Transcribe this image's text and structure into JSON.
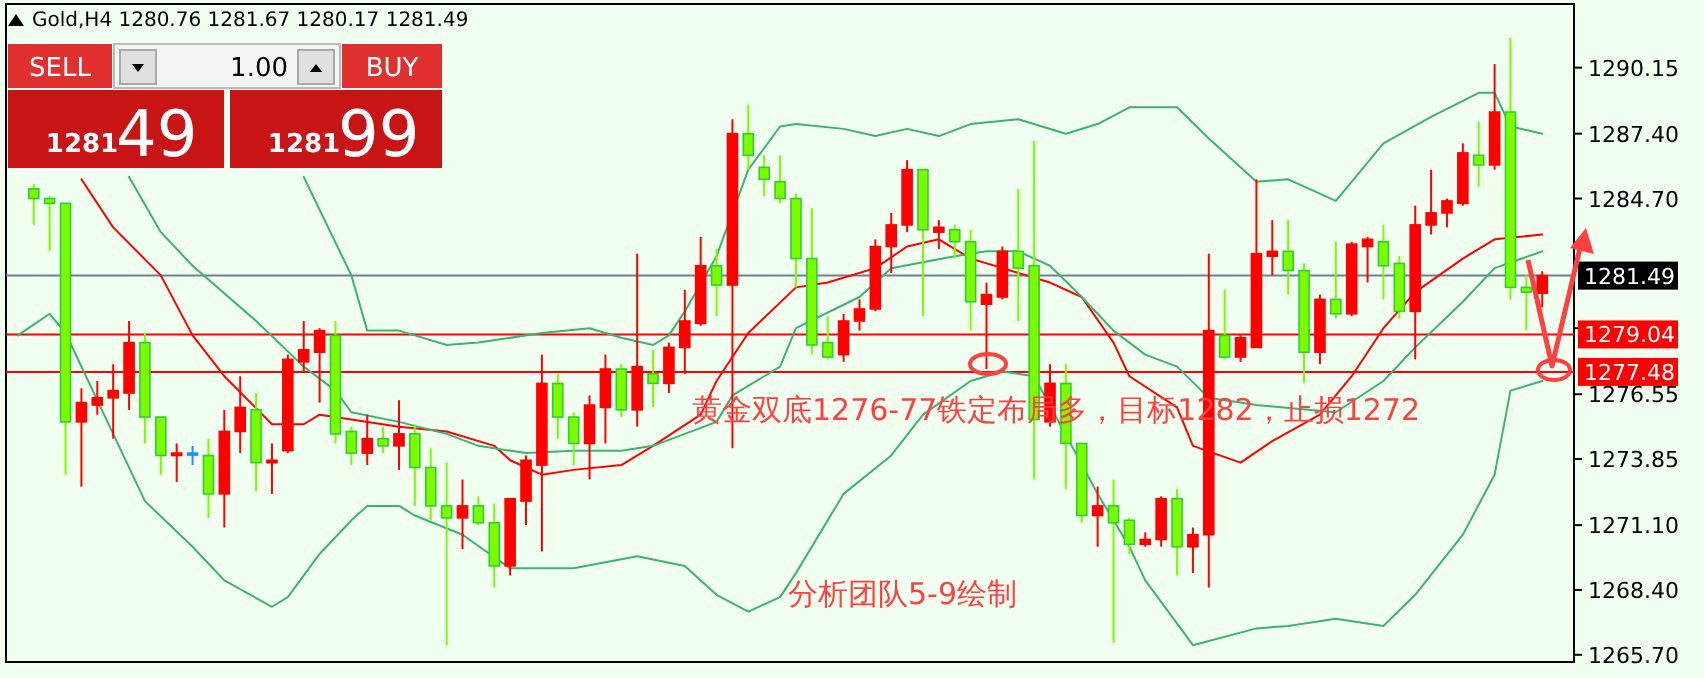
{
  "chart_data": {
    "type": "candlestick",
    "title": "Gold,H4 1280.76 1281.67 1280.17 1281.49",
    "categories": [
      null,
      null,
      null,
      null,
      null,
      null,
      null,
      null,
      null,
      null,
      null,
      null,
      null,
      null,
      null,
      null,
      null,
      null,
      null,
      null,
      null,
      null,
      null,
      null,
      null,
      null,
      null,
      null,
      null,
      null,
      null,
      null,
      null,
      null,
      null,
      null,
      null,
      null,
      null,
      null,
      null,
      null,
      null,
      null,
      null,
      null,
      null,
      null,
      null,
      null,
      null,
      null,
      null,
      null,
      null,
      null,
      null,
      null,
      null,
      null,
      null,
      null,
      null,
      null,
      null,
      null,
      null,
      null,
      null,
      null,
      null,
      null,
      null,
      null,
      null,
      null,
      null,
      null,
      null,
      null,
      null,
      null,
      null,
      null,
      null,
      null,
      null,
      null,
      null,
      null,
      null,
      null,
      null,
      null,
      null,
      null,
      null
    ],
    "ohlc": [
      null,
      [
        1285.1,
        1285.3,
        1283.6,
        1284.7
      ],
      [
        1284.7,
        1284.8,
        1282.5,
        1284.5
      ],
      [
        1284.5,
        1284.5,
        1273.2,
        1275.4
      ],
      [
        1275.4,
        1276.8,
        1272.7,
        1276.2
      ],
      [
        1276.1,
        1277.1,
        1275.7,
        1276.4
      ],
      [
        1276.4,
        1277.8,
        1274.7,
        1276.7
      ],
      [
        1276.6,
        1279.6,
        1275.9,
        1278.7
      ],
      [
        1278.7,
        1279.1,
        1274.5,
        1275.6
      ],
      [
        1275.6,
        1275.6,
        1273.2,
        1274.0
      ],
      [
        1274.0,
        1274.5,
        1272.9,
        1274.1
      ],
      [
        1274.1,
        1274.4,
        1273.6,
        1274.1
      ],
      [
        1274.0,
        1274.7,
        1271.4,
        1272.4
      ],
      [
        1272.4,
        1275.9,
        1271.0,
        1275.0
      ],
      [
        1275.0,
        1277.3,
        1274.1,
        1276.0
      ],
      [
        1275.9,
        1276.6,
        1272.5,
        1273.7
      ],
      [
        1273.7,
        1274.5,
        1272.4,
        1273.8
      ],
      [
        1274.2,
        1278.2,
        1274.1,
        1278.0
      ],
      [
        1277.9,
        1279.6,
        1277.5,
        1278.4
      ],
      [
        1278.3,
        1279.3,
        1276.2,
        1279.2
      ],
      [
        1279.0,
        1279.6,
        1274.5,
        1274.9
      ],
      [
        1275.0,
        1275.2,
        1273.6,
        1274.1
      ],
      [
        1274.1,
        1275.7,
        1273.6,
        1274.7
      ],
      [
        1274.7,
        1275.2,
        1274.1,
        1274.4
      ],
      [
        1274.4,
        1276.3,
        1273.4,
        1274.9
      ],
      [
        1274.9,
        1275.3,
        1271.9,
        1273.5
      ],
      [
        1273.5,
        1274.3,
        1271.3,
        1271.9
      ],
      [
        1271.9,
        1273.7,
        1266.1,
        1271.4
      ],
      [
        1271.4,
        1273.0,
        1270.1,
        1271.9
      ],
      [
        1271.9,
        1272.3,
        1271.1,
        1271.2
      ],
      [
        1271.2,
        1272.0,
        1268.5,
        1269.4
      ],
      [
        1269.4,
        1272.2,
        1269.0,
        1272.2
      ],
      [
        1272.1,
        1274.0,
        1271.1,
        1273.8
      ],
      [
        1273.6,
        1278.2,
        1270.0,
        1277.0
      ],
      [
        1277.0,
        1277.4,
        1274.7,
        1275.6
      ],
      [
        1275.6,
        1275.8,
        1273.6,
        1274.5
      ],
      [
        1274.5,
        1276.5,
        1273.0,
        1276.1
      ],
      [
        1276.0,
        1278.2,
        1274.5,
        1277.6
      ],
      [
        1277.6,
        1277.8,
        1275.6,
        1275.9
      ],
      [
        1275.9,
        1282.4,
        1275.2,
        1277.7
      ],
      [
        1277.4,
        1278.4,
        1276.0,
        1277.0
      ],
      [
        1277.0,
        1278.7,
        1276.6,
        1278.5
      ],
      [
        1278.5,
        1280.9,
        1277.4,
        1279.6
      ],
      [
        1279.5,
        1283.1,
        1279.4,
        1281.9
      ],
      [
        1281.9,
        1282.6,
        1279.8,
        1281.1
      ],
      [
        1281.1,
        1288.0,
        1274.3,
        1287.4
      ],
      [
        1287.4,
        1288.6,
        1285.9,
        1286.5
      ],
      [
        1286.0,
        1286.5,
        1284.8,
        1285.5
      ],
      [
        1285.4,
        1286.5,
        1284.5,
        1284.7
      ],
      [
        1284.7,
        1284.9,
        1281.0,
        1282.2
      ],
      [
        1282.2,
        1284.3,
        1278.2,
        1278.6
      ],
      [
        1278.7,
        1279.8,
        1278.0,
        1278.1
      ],
      [
        1278.2,
        1279.9,
        1277.9,
        1279.6
      ],
      [
        1279.6,
        1280.5,
        1279.2,
        1280.1
      ],
      [
        1280.1,
        1283.0,
        1280.0,
        1282.7
      ],
      [
        1282.7,
        1284.1,
        1281.6,
        1283.6
      ],
      [
        1283.6,
        1286.3,
        1283.3,
        1285.9
      ],
      [
        1285.9,
        1285.9,
        1279.8,
        1283.4
      ],
      [
        1283.3,
        1283.8,
        1282.6,
        1283.5
      ],
      [
        1283.4,
        1283.6,
        1282.2,
        1282.9
      ],
      [
        1282.9,
        1283.4,
        1279.2,
        1280.4
      ],
      [
        1280.3,
        1281.2,
        1277.6,
        1280.7
      ],
      [
        1280.6,
        1282.7,
        1280.5,
        1282.5
      ],
      [
        1282.5,
        1285.1,
        1279.6,
        1281.8
      ],
      [
        1281.9,
        1287.1,
        1273.0,
        1275.5
      ],
      [
        1275.4,
        1277.8,
        1275.2,
        1277.0
      ],
      [
        1277.0,
        1277.8,
        1272.6,
        1274.5
      ],
      [
        1274.5,
        1274.5,
        1271.2,
        1271.5
      ],
      [
        1271.5,
        1272.7,
        1270.2,
        1271.9
      ],
      [
        1271.9,
        1273.0,
        1266.2,
        1271.2
      ],
      [
        1271.3,
        1271.4,
        1269.9,
        1270.3
      ],
      [
        1270.3,
        1270.8,
        1270.2,
        1270.5
      ],
      [
        1270.5,
        1272.3,
        1270.2,
        1272.2
      ],
      [
        1272.2,
        1272.6,
        1269.0,
        1270.2
      ],
      [
        1270.2,
        1271.0,
        1269.1,
        1270.7
      ],
      [
        1270.7,
        1282.4,
        1268.5,
        1279.2
      ],
      [
        1279.0,
        1280.9,
        1278.0,
        1278.1
      ],
      [
        1278.1,
        1279.0,
        1277.9,
        1278.9
      ],
      [
        1278.5,
        1285.5,
        1278.5,
        1282.4
      ],
      [
        1282.3,
        1283.8,
        1281.5,
        1282.5
      ],
      [
        1282.5,
        1283.8,
        1280.7,
        1281.7
      ],
      [
        1281.7,
        1282.0,
        1277.0,
        1278.3
      ],
      [
        1278.3,
        1280.7,
        1277.8,
        1280.5
      ],
      [
        1280.5,
        1282.9,
        1279.7,
        1279.9
      ],
      [
        1279.9,
        1282.9,
        1279.8,
        1282.8
      ],
      [
        1282.7,
        1283.1,
        1281.2,
        1283.0
      ],
      [
        1282.9,
        1283.6,
        1280.5,
        1281.9
      ],
      [
        1282.0,
        1282.3,
        1279.7,
        1280.0
      ],
      [
        1280.0,
        1284.4,
        1278.0,
        1283.6
      ],
      [
        1283.6,
        1285.9,
        1283.2,
        1284.1
      ],
      [
        1284.1,
        1284.7,
        1283.5,
        1284.6
      ],
      [
        1284.5,
        1287.0,
        1284.4,
        1286.6
      ],
      [
        1286.5,
        1287.9,
        1285.2,
        1286.1
      ],
      [
        1286.1,
        1290.3,
        1285.9,
        1288.3
      ],
      [
        1288.3,
        1291.4,
        1280.5,
        1281.0
      ],
      [
        1281.0,
        1281.5,
        1279.2,
        1280.8
      ],
      [
        1280.76,
        1281.67,
        1280.17,
        1281.49
      ]
    ],
    "colors": [
      null,
      "#7cfc00",
      "#7cfc00",
      "#7cfc00",
      "#ff0000",
      "#ff0000",
      "#ff0000",
      "#ff0000",
      "#7cfc00",
      "#7cfc00",
      "#ff0000",
      "#1e90ff",
      "#7cfc00",
      "#ff0000",
      "#ff0000",
      "#7cfc00",
      "#ff0000",
      "#ff0000",
      "#ff0000",
      "#ff0000",
      "#7cfc00",
      "#7cfc00",
      "#ff0000",
      "#7cfc00",
      "#ff0000",
      "#7cfc00",
      "#7cfc00",
      "#7cfc00",
      "#ff0000",
      "#7cfc00",
      "#7cfc00",
      "#ff0000",
      "#ff0000",
      "#ff0000",
      "#7cfc00",
      "#7cfc00",
      "#ff0000",
      "#ff0000",
      "#7cfc00",
      "#ff0000",
      "#7cfc00",
      "#ff0000",
      "#ff0000",
      "#ff0000",
      "#7cfc00",
      "#ff0000",
      "#7cfc00",
      "#7cfc00",
      "#7cfc00",
      "#7cfc00",
      "#7cfc00",
      "#7cfc00",
      "#ff0000",
      "#ff0000",
      "#ff0000",
      "#ff0000",
      "#ff0000",
      "#7cfc00",
      "#ff0000",
      "#7cfc00",
      "#7cfc00",
      "#ff0000",
      "#ff0000",
      "#7cfc00",
      "#7cfc00",
      "#ff0000",
      "#7cfc00",
      "#7cfc00",
      "#ff0000",
      "#7cfc00",
      "#7cfc00",
      "#ff0000",
      "#ff0000",
      "#7cfc00",
      "#ff0000",
      "#ff0000",
      "#7cfc00",
      "#ff0000",
      "#ff0000",
      "#ff0000",
      "#7cfc00",
      "#7cfc00",
      "#ff0000",
      "#7cfc00",
      "#ff0000",
      "#ff0000",
      "#7cfc00",
      "#7cfc00",
      "#ff0000",
      "#ff0000",
      "#ff0000",
      "#ff0000",
      "#7cfc00",
      "#ff0000",
      "#7cfc00",
      "#7cfc00",
      "#ff0000"
    ],
    "series": [
      {
        "type": "line",
        "color": "#ff0000",
        "values": [
          null,
          null,
          null,
          null,
          1285.5,
          null,
          1283.5,
          null,
          null,
          1281.5,
          null,
          1279.0,
          null,
          1277.3,
          null,
          null,
          1275.3,
          null,
          1275.3,
          1275.7,
          null,
          1275.5,
          null,
          null,
          1275.2,
          null,
          null,
          1275.0,
          null,
          null,
          1274.4,
          1273.8,
          null,
          1273.2,
          null,
          1273.4,
          null,
          null,
          1273.6,
          null,
          1274.4,
          null,
          null,
          1275.7,
          1277.1,
          null,
          1279.1,
          null,
          null,
          1281.0,
          null,
          1281.2,
          null,
          null,
          1281.8,
          null,
          1282.7,
          null,
          1283.0,
          null,
          1282.2,
          null,
          1281.8,
          null,
          null,
          1281.2,
          null,
          1280.6,
          null,
          1278.7,
          1277.3,
          null,
          null,
          1276.0,
          1274.4,
          null,
          null,
          1273.7,
          null,
          1274.6,
          null,
          null,
          1275.7,
          null,
          1277.3,
          null,
          1279.3,
          null,
          1280.8,
          null,
          null,
          1282.2,
          null,
          1283.0,
          null,
          null,
          1283.2
        ]
      },
      {
        "type": "line",
        "color": "#3cb371",
        "values": [
          null,
          null,
          null,
          null,
          null,
          null,
          null,
          null,
          null,
          null,
          null,
          null,
          null,
          null,
          null,
          null,
          null,
          null,
          1285.6,
          null,
          null,
          1281.5,
          1279.2,
          null,
          1279.2,
          1279.0,
          null,
          1278.6,
          null,
          1278.7,
          null,
          null,
          null,
          1279.1,
          null,
          null,
          1279.3,
          null,
          1278.9,
          null,
          1278.6,
          1279.0,
          1280.0,
          null,
          1282.3,
          null,
          1285.9,
          null,
          1287.7,
          1287.8,
          null,
          null,
          1287.6,
          null,
          1287.3,
          null,
          1287.6,
          null,
          1287.3,
          null,
          1287.8,
          null,
          null,
          1288.0,
          null,
          null,
          1287.4,
          null,
          1287.8,
          null,
          1288.5,
          null,
          null,
          1288.5,
          null,
          1287.2,
          null,
          1286.0,
          1285.4,
          null,
          1285.5,
          null,
          null,
          1284.6,
          null,
          null,
          1287.0,
          null,
          null,
          1288.1,
          null,
          null,
          1289.1,
          1289.1,
          1287.7,
          null,
          1287.4
        ]
      },
      {
        "type": "line",
        "color": "#3cb371",
        "values": [
          null,
          null,
          null,
          null,
          null,
          null,
          null,
          1285.6,
          null,
          1283.3,
          null,
          1281.9,
          null,
          null,
          null,
          1279.6,
          null,
          null,
          1277.7,
          null,
          1276.7,
          1275.8,
          null,
          null,
          1275.4,
          null,
          null,
          1274.9,
          null,
          1274.4,
          null,
          null,
          1274.1,
          null,
          null,
          1274.2,
          null,
          null,
          1274.2,
          null,
          1274.4,
          null,
          1274.9,
          null,
          1275.4,
          1276.5,
          null,
          null,
          1277.7,
          1279.3,
          null,
          null,
          null,
          1280.6,
          null,
          1281.8,
          null,
          null,
          null,
          1282.3,
          null,
          1282.5,
          null,
          1282.5,
          null,
          1281.9,
          null,
          1280.6,
          null,
          1279.2,
          null,
          1278.2,
          null,
          1277.7,
          null,
          1276.4,
          null,
          null,
          1276.1,
          null,
          null,
          null,
          null,
          1275.8,
          null,
          null,
          1277.1,
          null,
          1278.5,
          null,
          null,
          1280.4,
          null,
          1281.8,
          null,
          null,
          1282.5
        ]
      },
      {
        "type": "line",
        "color": "#3cb371",
        "values": [
          1279.0,
          null,
          1279.9,
          1279.1,
          null,
          null,
          1274.9,
          null,
          1272.1,
          null,
          null,
          1270.2,
          null,
          1268.8,
          null,
          null,
          1267.7,
          1268.1,
          null,
          1269.9,
          null,
          1271.3,
          1271.9,
          null,
          1271.9,
          1271.5,
          null,
          null,
          1270.7,
          null,
          null,
          1269.3,
          null,
          null,
          null,
          1269.3,
          null,
          null,
          null,
          1269.8,
          null,
          null,
          1269.4,
          null,
          1268.2,
          null,
          1267.5,
          null,
          1268.1,
          1269.1,
          null,
          null,
          1272.4,
          null,
          null,
          1274.0,
          null,
          1275.7,
          null,
          null,
          1277.1,
          null,
          1277.5,
          null,
          1277.3,
          null,
          null,
          null,
          1272.4,
          null,
          1270.2,
          1268.8,
          null,
          null,
          1266.1,
          null,
          null,
          null,
          1266.8,
          null,
          1266.9,
          null,
          null,
          1267.2,
          null,
          null,
          1266.9,
          null,
          1268.2,
          null,
          null,
          1270.7,
          null,
          1273.2,
          1276.7,
          null,
          1277.1
        ]
      }
    ],
    "ylim": [
      1265.4,
      1292.8
    ],
    "yticks": [
      {
        "value": 1290.15,
        "label": "1290.15"
      },
      {
        "value": 1287.4,
        "label": "1287.40"
      },
      {
        "value": 1284.7,
        "label": "1284.70"
      },
      {
        "value": 1282.0,
        "label": null
      },
      {
        "value": 1279.3,
        "label": null
      },
      {
        "value": 1276.55,
        "label": "1276.55"
      },
      {
        "value": 1273.85,
        "label": "1273.85"
      },
      {
        "value": 1271.1,
        "label": "1271.10"
      },
      {
        "value": 1268.4,
        "label": "1268.40"
      },
      {
        "value": 1265.7,
        "label": "1265.70"
      }
    ],
    "tick_labels": "y",
    "ref_lines": [
      {
        "axis": "y",
        "value": 1281.49,
        "label": "1281.49",
        "color": "#708090"
      },
      {
        "axis": "y",
        "value": 1279.04,
        "label": "1279.04",
        "color": "#ff0000"
      },
      {
        "axis": "y",
        "value": 1277.48,
        "label": "1277.48",
        "color": "#ff0000"
      }
    ],
    "annotations": [
      "黄金双底1276-77铁定布局多，目标1282，止损1272",
      "分析团队5-9绘制",
      "SELL",
      "1.00",
      "BUY",
      "1281",
      "49",
      "1281",
      "99"
    ]
  }
}
